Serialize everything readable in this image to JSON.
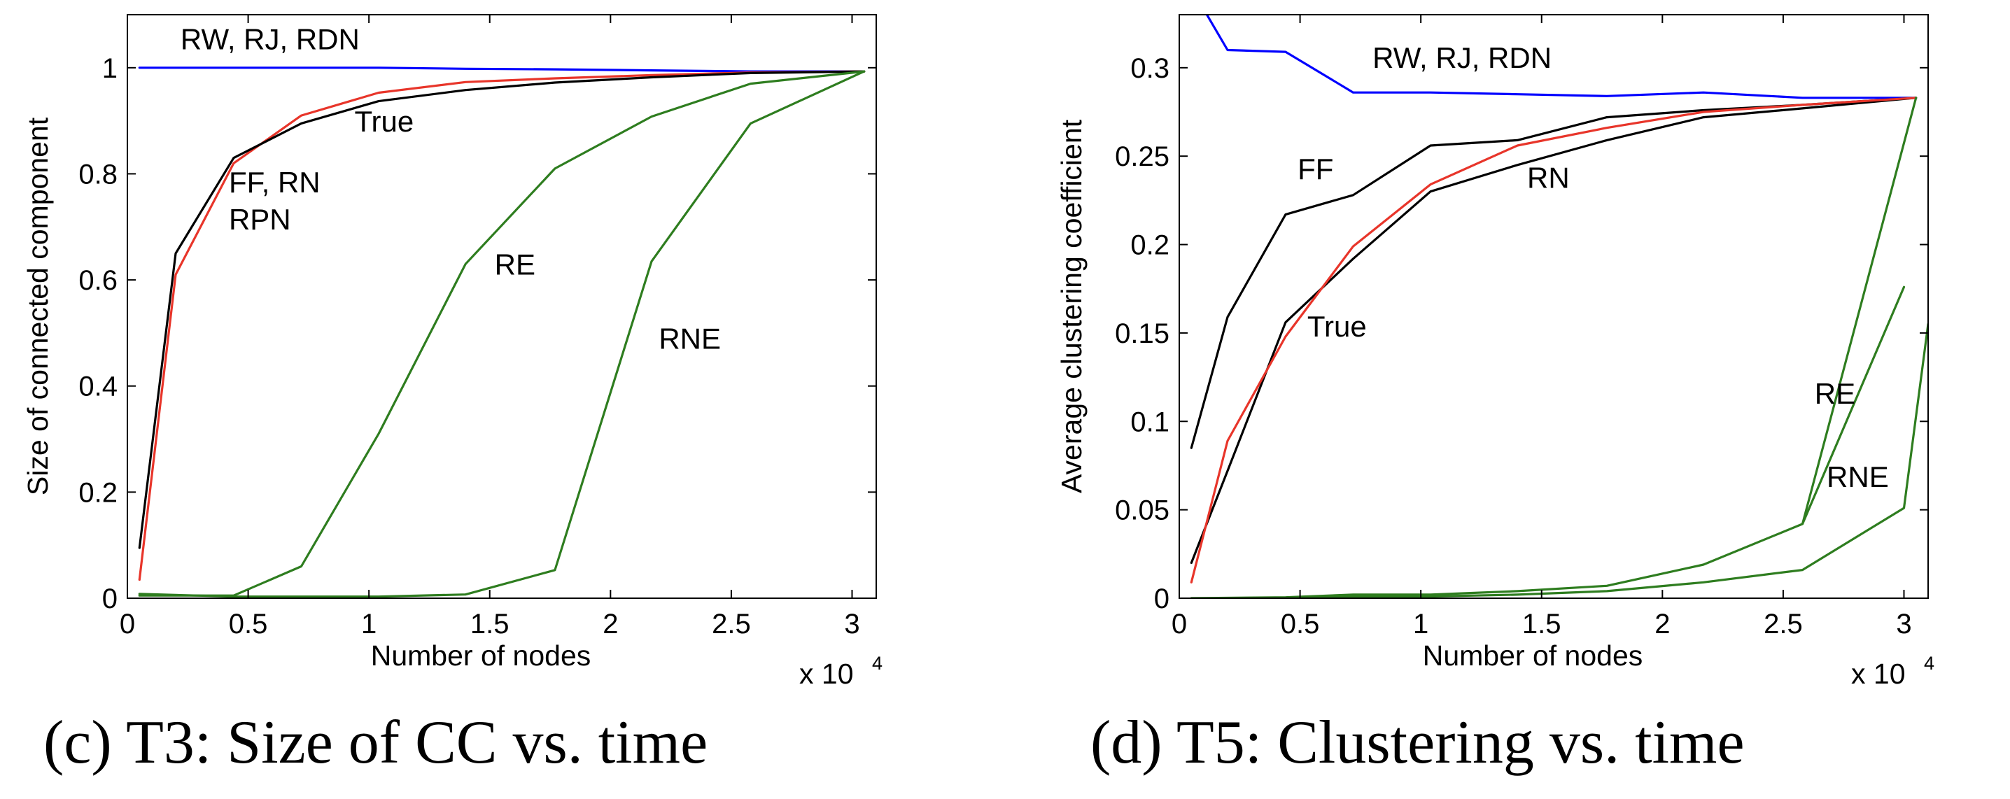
{
  "chart_data": [
    {
      "type": "line",
      "caption": "(c) T3: Size of CC vs. time",
      "xlabel": "Number of nodes",
      "ylabel": "Size of connected component",
      "x_multiplier_label": "x 10",
      "x_multiplier_exp": "4",
      "xlim": [
        0,
        3.1
      ],
      "ylim": [
        0,
        1.1
      ],
      "xticks": [
        0,
        0.5,
        1,
        1.5,
        2,
        2.5,
        3
      ],
      "xtick_labels": [
        "0",
        "0.5",
        "1",
        "1.5",
        "2",
        "2.5",
        "3"
      ],
      "yticks": [
        0,
        0.2,
        0.4,
        0.6,
        0.8,
        1
      ],
      "ytick_labels": [
        "0",
        "0.2",
        "0.4",
        "0.6",
        "0.8",
        "1"
      ],
      "grid": false,
      "series": [
        {
          "color": "#0000ff",
          "x": [
            0.05,
            0.44,
            0.72,
            1.04,
            1.4,
            1.77,
            2.17,
            2.58,
            3.05
          ],
          "y": [
            1.0,
            1.0,
            1.0,
            1.0,
            0.998,
            0.997,
            0.995,
            0.993,
            0.993
          ]
        },
        {
          "color": "#e8352a",
          "x": [
            0.05,
            0.2,
            0.44,
            0.72,
            1.04,
            1.4,
            1.77,
            2.17,
            2.58,
            3.05
          ],
          "y": [
            0.035,
            0.61,
            0.82,
            0.91,
            0.953,
            0.973,
            0.98,
            0.986,
            0.991,
            0.993
          ]
        },
        {
          "color": "#000000",
          "x": [
            0.05,
            0.2,
            0.44,
            0.72,
            1.04,
            1.4,
            1.77,
            2.17,
            2.58,
            3.05
          ],
          "y": [
            0.095,
            0.65,
            0.83,
            0.895,
            0.937,
            0.958,
            0.972,
            0.982,
            0.99,
            0.993
          ]
        },
        {
          "color": "#2e7d1f",
          "x": [
            0.05,
            0.44,
            0.72,
            1.04,
            1.4,
            1.77,
            2.17,
            2.58,
            3.05
          ],
          "y": [
            0.005,
            0.005,
            0.06,
            0.31,
            0.63,
            0.81,
            0.908,
            0.97,
            0.993
          ]
        },
        {
          "color": "#2e7d1f",
          "x": [
            0.05,
            0.44,
            0.72,
            1.04,
            1.4,
            1.77,
            2.17,
            2.58,
            3.05
          ],
          "y": [
            0.008,
            0.003,
            0.003,
            0.003,
            0.007,
            0.053,
            0.635,
            0.895,
            0.993
          ]
        }
      ],
      "annotations": [
        {
          "text": "RW, RJ, RDN",
          "x": 0.22,
          "y": 1.035
        },
        {
          "text": "True",
          "x": 0.94,
          "y": 0.88
        },
        {
          "text": "FF, RN",
          "x": 0.42,
          "y": 0.765
        },
        {
          "text": "RPN",
          "x": 0.42,
          "y": 0.695
        },
        {
          "text": "RE",
          "x": 1.52,
          "y": 0.61
        },
        {
          "text": "RNE",
          "x": 2.2,
          "y": 0.47
        }
      ]
    },
    {
      "type": "line",
      "caption": "(d) T5: Clustering vs. time",
      "xlabel": "Number of nodes",
      "ylabel": "Average clustering coefficient",
      "x_multiplier_label": "x 10",
      "x_multiplier_exp": "4",
      "xlim": [
        0,
        3.1
      ],
      "ylim": [
        0,
        0.33
      ],
      "xticks": [
        0,
        0.5,
        1,
        1.5,
        2,
        2.5,
        3
      ],
      "xtick_labels": [
        "0",
        "0.5",
        "1",
        "1.5",
        "2",
        "2.5",
        "3"
      ],
      "yticks": [
        0,
        0.05,
        0.1,
        0.15,
        0.2,
        0.25,
        0.3
      ],
      "ytick_labels": [
        "0",
        "0.05",
        "0.1",
        "0.15",
        "0.2",
        "0.25",
        "0.3"
      ],
      "grid": false,
      "series": [
        {
          "color": "#0000ff",
          "x": [
            0.05,
            0.2,
            0.44,
            0.72,
            1.04,
            1.4,
            1.77,
            2.17,
            2.58,
            3.05
          ],
          "y": [
            0.345,
            0.31,
            0.309,
            0.286,
            0.286,
            0.285,
            0.284,
            0.286,
            0.283,
            0.283
          ]
        },
        {
          "color": "#000000",
          "x": [
            0.05,
            0.2,
            0.44,
            0.72,
            1.04,
            1.4,
            1.77,
            2.17,
            2.58,
            3.05
          ],
          "y": [
            0.085,
            0.159,
            0.217,
            0.228,
            0.256,
            0.259,
            0.272,
            0.276,
            0.279,
            0.283
          ]
        },
        {
          "color": "#000000",
          "x": [
            0.05,
            0.2,
            0.44,
            0.72,
            1.04,
            1.4,
            1.77,
            2.17,
            2.58,
            3.05
          ],
          "y": [
            0.02,
            0.072,
            0.156,
            0.192,
            0.23,
            0.245,
            0.259,
            0.272,
            0.277,
            0.283
          ]
        },
        {
          "color": "#e8352a",
          "x": [
            0.05,
            0.2,
            0.44,
            0.72,
            1.04,
            1.4,
            1.77,
            2.17,
            2.58,
            3.05
          ],
          "y": [
            0.009,
            0.089,
            0.148,
            0.199,
            0.234,
            0.256,
            0.266,
            0.275,
            0.279,
            0.283
          ]
        },
        {
          "color": "#2e7d1f",
          "x": [
            0.05,
            0.44,
            0.72,
            1.04,
            1.4,
            1.77,
            2.17,
            2.58,
            3.05
          ],
          "y": [
            0.0,
            0.0005,
            0.002,
            0.002,
            0.004,
            0.007,
            0.019,
            0.042,
            0.283
          ]
        },
        {
          "color": "#2e7d1f",
          "x": [
            0.05,
            0.44,
            0.72,
            1.04,
            1.4,
            1.77,
            2.17,
            2.58,
            3.0,
            3.1
          ],
          "y": [
            0.0,
            0.0,
            0.001,
            0.001,
            0.002,
            0.004,
            0.009,
            0.016,
            0.051,
            0.155
          ]
        },
        {
          "color": "#2e7d1f",
          "x": [
            2.58,
            3.0
          ],
          "y": [
            0.042,
            0.176
          ]
        }
      ],
      "annotations": [
        {
          "text": "RW, RJ, RDN",
          "x": 0.8,
          "y": 0.3
        },
        {
          "text": "FF",
          "x": 0.49,
          "y": 0.237
        },
        {
          "text": "RN",
          "x": 1.44,
          "y": 0.232
        },
        {
          "text": "True",
          "x": 0.53,
          "y": 0.148
        },
        {
          "text": "RE",
          "x": 2.63,
          "y": 0.11
        },
        {
          "text": "RNE",
          "x": 2.68,
          "y": 0.063
        }
      ]
    }
  ]
}
